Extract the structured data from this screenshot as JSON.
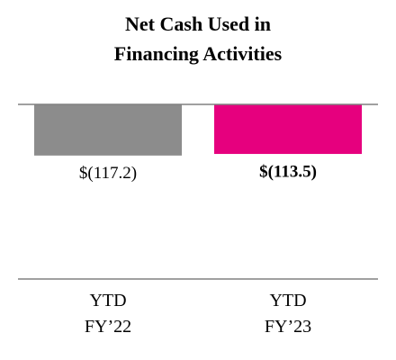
{
  "chart_data": {
    "type": "bar",
    "title": "Net Cash Used in\nFinancing Activities",
    "categories": [
      "YTD\nFY’22",
      "YTD\nFY’23"
    ],
    "values": [
      -117.2,
      -113.5
    ],
    "value_labels": [
      "$(117.2)",
      "$(113.5)"
    ],
    "value_label_bold": [
      false,
      true
    ],
    "colors": [
      "#8c8c8c",
      "#e6007e"
    ],
    "ylim": [
      -400,
      0
    ]
  }
}
